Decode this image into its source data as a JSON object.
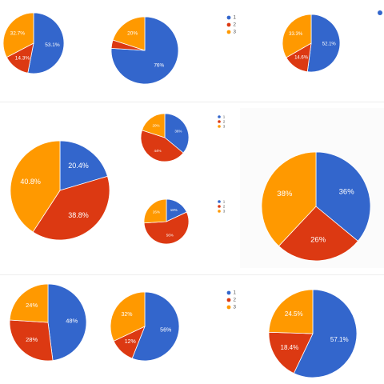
{
  "colors": {
    "1": "#3366cc",
    "2": "#dc3912",
    "3": "#ff9900"
  },
  "chart_data": [
    {
      "type": "pie",
      "categories": [
        "1",
        "2",
        "3"
      ],
      "values": [
        53.1,
        14.3,
        32.7
      ],
      "labels": [
        "53.1%",
        "14.3%",
        "32.7%"
      ]
    },
    {
      "type": "pie",
      "categories": [
        "1",
        "2",
        "3"
      ],
      "values": [
        76,
        4,
        20
      ],
      "labels": [
        "76%",
        "",
        "20%"
      ]
    },
    {
      "type": "pie",
      "categories": [
        "1",
        "2",
        "3"
      ],
      "values": [
        52.1,
        14.6,
        33.3
      ],
      "labels": [
        "52.1%",
        "14.6%",
        "33.3%"
      ]
    },
    {
      "type": "pie",
      "categories": [
        "1",
        "2",
        "3"
      ],
      "values": [
        36,
        44,
        20
      ],
      "labels": [
        "36%",
        "44%",
        "20%"
      ]
    },
    {
      "type": "pie",
      "categories": [
        "1",
        "2",
        "3"
      ],
      "values": [
        20.4,
        38.8,
        40.8
      ],
      "labels": [
        "20.4%",
        "38.8%",
        "40.8%"
      ]
    },
    {
      "type": "pie",
      "categories": [
        "1",
        "2",
        "3"
      ],
      "values": [
        18,
        56,
        26
      ],
      "labels": [
        "18%",
        "56%",
        "26%"
      ]
    },
    {
      "type": "pie",
      "categories": [
        "1",
        "2",
        "3"
      ],
      "values": [
        36,
        26,
        38
      ],
      "labels": [
        "36%",
        "26%",
        "38%"
      ]
    },
    {
      "type": "pie",
      "categories": [
        "1",
        "2",
        "3"
      ],
      "values": [
        48,
        28,
        24
      ],
      "labels": [
        "48%",
        "28%",
        "24%"
      ]
    },
    {
      "type": "pie",
      "categories": [
        "1",
        "2",
        "3"
      ],
      "values": [
        56,
        12,
        32
      ],
      "labels": [
        "56%",
        "12%",
        "32%"
      ]
    },
    {
      "type": "pie",
      "categories": [
        "1",
        "2",
        "3"
      ],
      "values": [
        57.1,
        18.4,
        24.5
      ],
      "labels": [
        "57.1%",
        "18.4%",
        "24.5%"
      ]
    }
  ],
  "legends": [
    {
      "items": [
        "1",
        "2",
        "3"
      ]
    },
    {
      "items": [
        "1",
        "2",
        "3"
      ]
    },
    {
      "items": [
        "1",
        "2",
        "3"
      ]
    },
    {
      "items": [
        "1",
        "2",
        "3"
      ]
    },
    {
      "items": [
        "1",
        "2",
        "3"
      ]
    }
  ]
}
